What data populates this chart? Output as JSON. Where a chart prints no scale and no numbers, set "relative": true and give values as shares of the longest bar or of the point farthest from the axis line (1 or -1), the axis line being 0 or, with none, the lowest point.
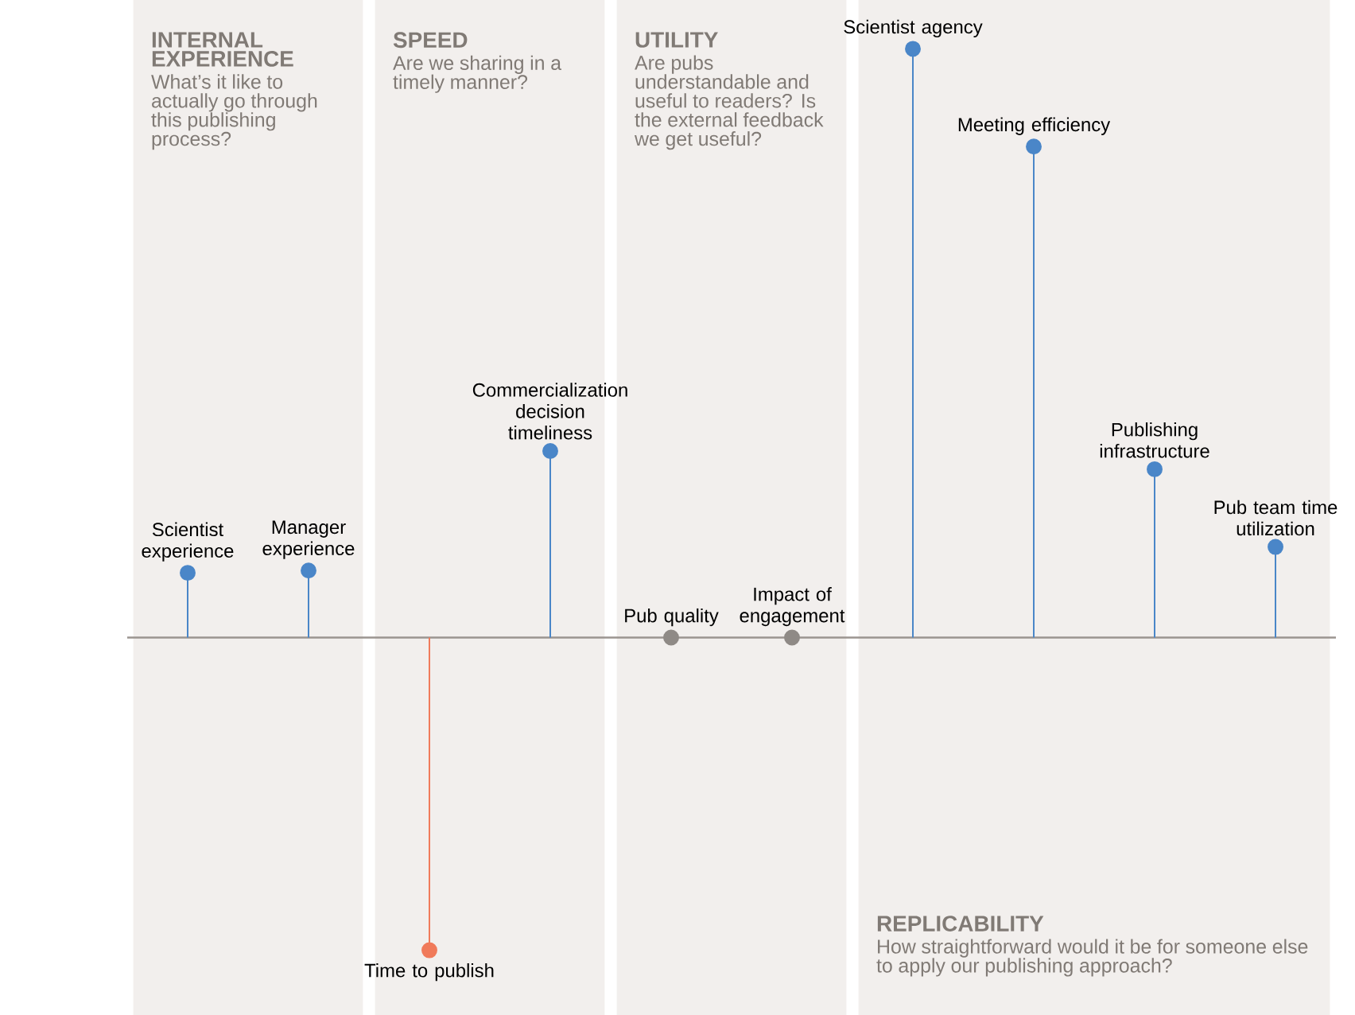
{
  "chart_data": {
    "type": "lollipop",
    "relative": true,
    "marker": "circle",
    "categories": [
      "Scientist experience",
      "Manager experience",
      "Time to publish",
      "Commercialization decision timeliness",
      "Pub quality",
      "Impact of engagement",
      "Scientist agency",
      "Meeting efficiency",
      "Publishing infrastructure",
      "Pub team time utilization"
    ],
    "values": [
      0.11,
      0.114,
      -0.531,
      0.317,
      0,
      0,
      1,
      0.834,
      0.286,
      0.154
    ],
    "colors": [
      "#4a86c8",
      "#4a86c8",
      "#f07a5a",
      "#4a86c8",
      "#8f8a86",
      "#8f8a86",
      "#4a86c8",
      "#4a86c8",
      "#4a86c8",
      "#4a86c8"
    ],
    "bands": [
      {
        "axis": "x",
        "from": "Scientist experience",
        "to": "Manager experience",
        "label": "INTERNAL EXPERIENCE",
        "color": "#f2efed"
      },
      {
        "axis": "x",
        "from": "Time to publish",
        "to": "Commercialization decision timeliness",
        "label": "SPEED",
        "color": "#f2efed"
      },
      {
        "axis": "x",
        "from": "Pub quality",
        "to": "Impact of engagement",
        "label": "UTILITY",
        "color": "#f2efed"
      },
      {
        "axis": "x",
        "from": "Scientist agency",
        "to": "Pub team time utilization",
        "label": "REPLICABILITY",
        "color": "#f2efed"
      }
    ],
    "annotations": [
      "What’s it like to actually go through this publishing process?",
      "Are we sharing in a timely manner?",
      "Are pubs understandable and useful to readers? Is the external feedback we get useful?",
      "How straightforward would it be for someone else to apply our publishing approach?"
    ]
  }
}
